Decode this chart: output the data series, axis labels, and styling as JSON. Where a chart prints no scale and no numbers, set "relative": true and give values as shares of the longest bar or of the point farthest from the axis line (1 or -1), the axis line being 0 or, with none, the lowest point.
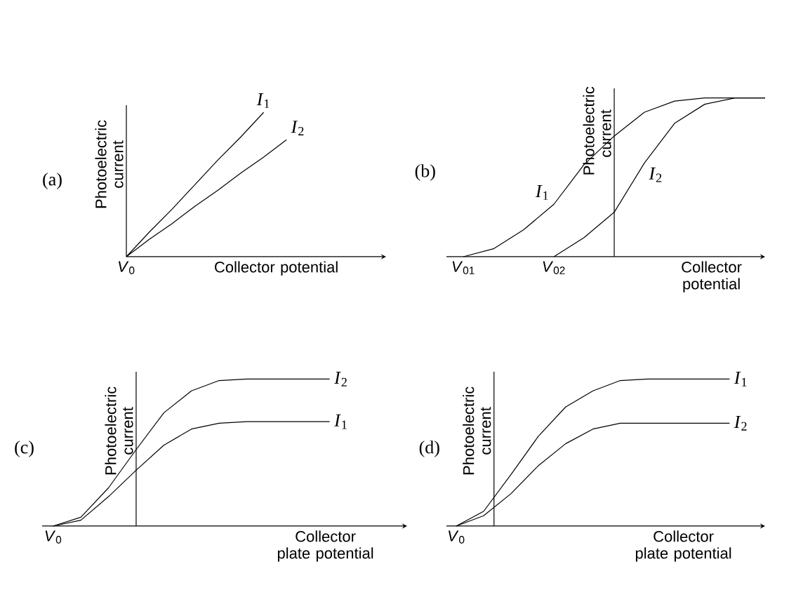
{
  "chart_data": [
    {
      "type": "line",
      "title": "(a)",
      "xlabel": "Collector potential",
      "ylabel": "Photoelectric current",
      "relative": true,
      "annotations": [
        "*V*$_{0}$"
      ],
      "categories": [
        null,
        null,
        null,
        null,
        null,
        null,
        null,
        null
      ],
      "series": [
        {
          "name": "*I*$_{1}$",
          "color": "#000000",
          "values": [
            0,
            0.17,
            0.33,
            0.5,
            0.67,
            0.83,
            1,
            null
          ]
        },
        {
          "name": "*I*$_{2}$",
          "color": "#000000",
          "values": [
            0,
            0.12,
            0.23,
            0.35,
            0.46,
            0.58,
            0.69,
            0.81
          ]
        }
      ]
    },
    {
      "type": "line",
      "title": "(b)",
      "xlabel": "Collector potential",
      "ylabel": "Photoelectric current",
      "relative": true,
      "annotations": [
        "*V*$_{01}$",
        "*V*$_{02}$"
      ],
      "categories": [
        null,
        null,
        null,
        null,
        null,
        null,
        null,
        null,
        null,
        null,
        null
      ],
      "series": [
        {
          "name": "*I*$_{1}$",
          "color": "#000000",
          "values": [
            0,
            0.05,
            0.17,
            0.33,
            0.58,
            0.76,
            0.91,
            0.98,
            1,
            1,
            1
          ]
        },
        {
          "name": "*I*$_{2}$",
          "color": "#000000",
          "values": [
            null,
            null,
            null,
            0,
            0.12,
            0.28,
            0.59,
            0.84,
            0.96,
            1,
            1
          ]
        }
      ]
    },
    {
      "type": "line",
      "title": "(c)",
      "xlabel": "Collector plate potential",
      "ylabel": "Photoelectric current",
      "relative": true,
      "annotations": [
        "*V*$_{0}$"
      ],
      "categories": [
        null,
        null,
        null,
        null,
        null,
        null,
        null,
        null,
        null,
        null,
        null
      ],
      "series": [
        {
          "name": "*I*$_{1}$",
          "color": "#000000",
          "values": [
            0,
            0.04,
            0.2,
            0.38,
            0.55,
            0.66,
            0.7,
            0.71,
            0.71,
            0.71,
            0.71
          ]
        },
        {
          "name": "*I*$_{2}$",
          "color": "#000000",
          "values": [
            0,
            0.06,
            0.26,
            0.52,
            0.77,
            0.92,
            0.99,
            1,
            1,
            1,
            1
          ]
        }
      ]
    },
    {
      "type": "line",
      "title": "(d)",
      "xlabel": "Collector plate potential",
      "ylabel": "Photoelectric current",
      "relative": true,
      "annotations": [
        "*V*$_{0}$"
      ],
      "categories": [
        null,
        null,
        null,
        null,
        null,
        null,
        null,
        null,
        null,
        null,
        null
      ],
      "series": [
        {
          "name": "*I*$_{1}$",
          "color": "#000000",
          "values": [
            0,
            0.1,
            0.35,
            0.61,
            0.81,
            0.92,
            0.99,
            1,
            1,
            1,
            1
          ]
        },
        {
          "name": "*I*$_{2}$",
          "color": "#000000",
          "values": [
            0,
            0.07,
            0.22,
            0.41,
            0.56,
            0.66,
            0.7,
            0.7,
            0.7,
            0.7,
            0.7
          ]
        }
      ]
    }
  ]
}
